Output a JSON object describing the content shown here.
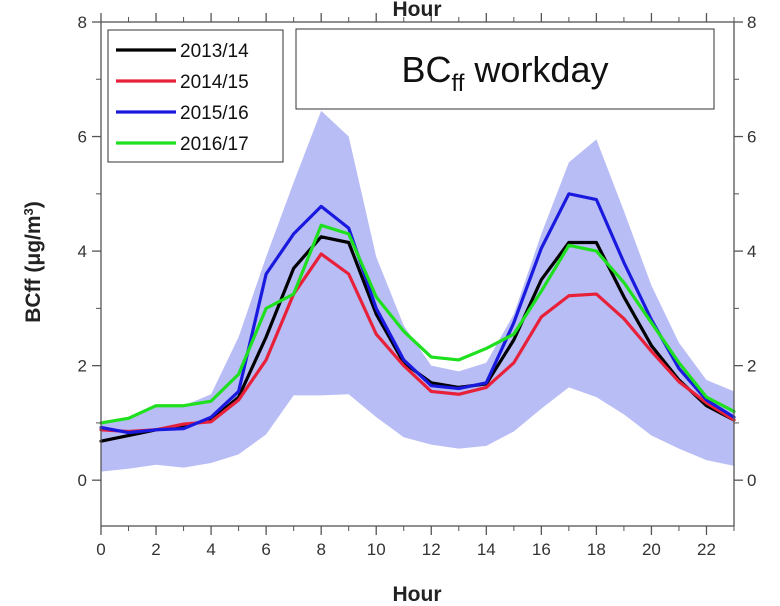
{
  "chart_data": {
    "type": "line",
    "xlabel": "Hour",
    "top_xlabel": "Hour",
    "ylabel_main": "BCff (",
    "ylabel_unit": "μg/m",
    "ylabel_exp": "3",
    "ylabel_close": ")",
    "xlim": [
      0,
      23
    ],
    "ylim": [
      -0.8,
      8
    ],
    "xticks": [
      0,
      2,
      4,
      6,
      8,
      10,
      12,
      14,
      16,
      18,
      20,
      22
    ],
    "xtick_labels": [
      "0",
      "2",
      "4",
      "6",
      "8",
      "10",
      "12",
      "14",
      "16",
      "18",
      "20",
      "22"
    ],
    "yticks": [
      0,
      2,
      4,
      6,
      8
    ],
    "ytick_labels": [
      "0",
      "2",
      "4",
      "6",
      "8"
    ],
    "right_ytick_labels": [
      "0",
      "2",
      "4",
      "6",
      "8"
    ],
    "grid": false,
    "legend_position": "top-left",
    "annotation": {
      "main": "BC",
      "subscript": "ff",
      "suffix": " workday"
    },
    "x": [
      0,
      1,
      2,
      3,
      4,
      5,
      6,
      7,
      8,
      9,
      10,
      11,
      12,
      13,
      14,
      15,
      16,
      17,
      18,
      19,
      20,
      21,
      22,
      23
    ],
    "series": [
      {
        "name": "2013/14",
        "color": "#000000",
        "values": [
          0.68,
          0.78,
          0.88,
          0.95,
          1.05,
          1.45,
          2.5,
          3.7,
          4.25,
          4.15,
          2.9,
          2.05,
          1.7,
          1.62,
          1.68,
          2.45,
          3.5,
          4.15,
          4.15,
          3.2,
          2.35,
          1.75,
          1.3,
          1.05
        ]
      },
      {
        "name": "2014/15",
        "color": "#e8213a",
        "values": [
          0.88,
          0.85,
          0.88,
          0.98,
          1.02,
          1.4,
          2.1,
          3.25,
          3.95,
          3.6,
          2.55,
          2.0,
          1.55,
          1.5,
          1.62,
          2.05,
          2.85,
          3.22,
          3.25,
          2.82,
          2.25,
          1.72,
          1.35,
          1.05
        ]
      },
      {
        "name": "2015/16",
        "color": "#1a1adf",
        "values": [
          0.92,
          0.83,
          0.88,
          0.9,
          1.1,
          1.55,
          3.6,
          4.3,
          4.78,
          4.4,
          3.0,
          2.1,
          1.65,
          1.6,
          1.7,
          2.75,
          4.05,
          5.0,
          4.9,
          3.8,
          2.8,
          1.95,
          1.4,
          1.1
        ]
      },
      {
        "name": "2016/17",
        "color": "#1fe01f",
        "values": [
          1.0,
          1.08,
          1.3,
          1.3,
          1.38,
          1.85,
          3.0,
          3.25,
          4.45,
          4.3,
          3.2,
          2.6,
          2.15,
          2.1,
          2.3,
          2.55,
          3.3,
          4.1,
          4.0,
          3.45,
          2.75,
          2.05,
          1.45,
          1.2
        ]
      }
    ],
    "band": {
      "color": "#b9bdf6",
      "upper": [
        1.0,
        1.1,
        1.3,
        1.3,
        1.5,
        2.5,
        3.9,
        5.2,
        6.45,
        6.0,
        3.9,
        2.7,
        2.0,
        1.9,
        2.05,
        2.9,
        4.3,
        5.55,
        5.95,
        4.7,
        3.4,
        2.4,
        1.75,
        1.55
      ],
      "lower": [
        0.15,
        0.2,
        0.27,
        0.22,
        0.3,
        0.45,
        0.8,
        1.48,
        1.48,
        1.5,
        1.1,
        0.75,
        0.62,
        0.55,
        0.6,
        0.85,
        1.25,
        1.62,
        1.45,
        1.15,
        0.78,
        0.55,
        0.35,
        0.25
      ]
    }
  }
}
